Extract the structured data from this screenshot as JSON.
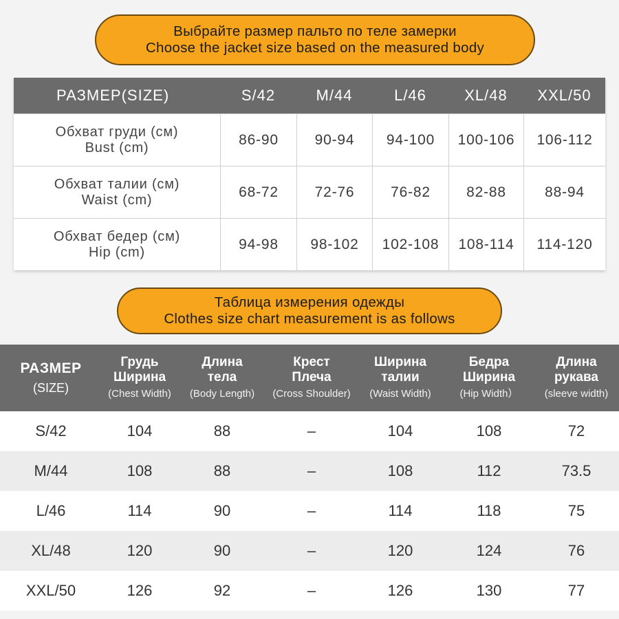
{
  "banner1": {
    "line_ru": "Выбрайте размер пальто по теле замерки",
    "line_en": "Choose the jacket size based on the measured body"
  },
  "body_table": {
    "header": {
      "label": "РАЗМЕР(SIZE)",
      "sizes": [
        "S/42",
        "M/44",
        "L/46",
        "XL/48",
        "XXL/50"
      ]
    },
    "rows": [
      {
        "label_ru": "Обхват груди (см)",
        "label_en": "Bust (cm)",
        "values": [
          "86-90",
          "90-94",
          "94-100",
          "100-106",
          "106-112"
        ]
      },
      {
        "label_ru": "Обхват талии (см)",
        "label_en": "Waist (cm)",
        "values": [
          "68-72",
          "72-76",
          "76-82",
          "82-88",
          "88-94"
        ]
      },
      {
        "label_ru": "Обхват бедер (см)",
        "label_en": "Hip (cm)",
        "values": [
          "94-98",
          "98-102",
          "102-108",
          "108-114",
          "114-120"
        ]
      }
    ]
  },
  "banner2": {
    "line_ru": "Таблица измерения одежды",
    "line_en": "Clothes size chart measurement is as follows"
  },
  "garment_table": {
    "header": {
      "size_ru": "РАЗМЕР",
      "size_en": "(SIZE)",
      "columns": [
        {
          "ru1": "Грудь",
          "ru2": "Ширина",
          "en": "(Chest Width)"
        },
        {
          "ru1": "Длина",
          "ru2": "тела",
          "en": "(Body Length)"
        },
        {
          "ru1": "Крест",
          "ru2": "Плеча",
          "en": "(Cross Shoulder)"
        },
        {
          "ru1": "Ширина",
          "ru2": "талии",
          "en": "(Waist Width)"
        },
        {
          "ru1": "Бедра",
          "ru2": "Ширина",
          "en": "(Hip Width）"
        },
        {
          "ru1": "Длина",
          "ru2": "рукава",
          "en": "(sleeve width)"
        }
      ]
    },
    "rows": [
      {
        "size": "S/42",
        "values": [
          "104",
          "88",
          "–",
          "104",
          "108",
          "72"
        ]
      },
      {
        "size": "M/44",
        "values": [
          "108",
          "88",
          "–",
          "108",
          "112",
          "73.5"
        ]
      },
      {
        "size": "L/46",
        "values": [
          "114",
          "90",
          "–",
          "114",
          "118",
          "75"
        ]
      },
      {
        "size": "XL/48",
        "values": [
          "120",
          "90",
          "–",
          "120",
          "124",
          "76"
        ]
      },
      {
        "size": "XXL/50",
        "values": [
          "126",
          "92",
          "–",
          "126",
          "130",
          "77"
        ]
      }
    ]
  },
  "colors": {
    "banner_fill": "#f7a51c",
    "header_fill": "#6b6b6b",
    "stripe": "#ececec"
  }
}
